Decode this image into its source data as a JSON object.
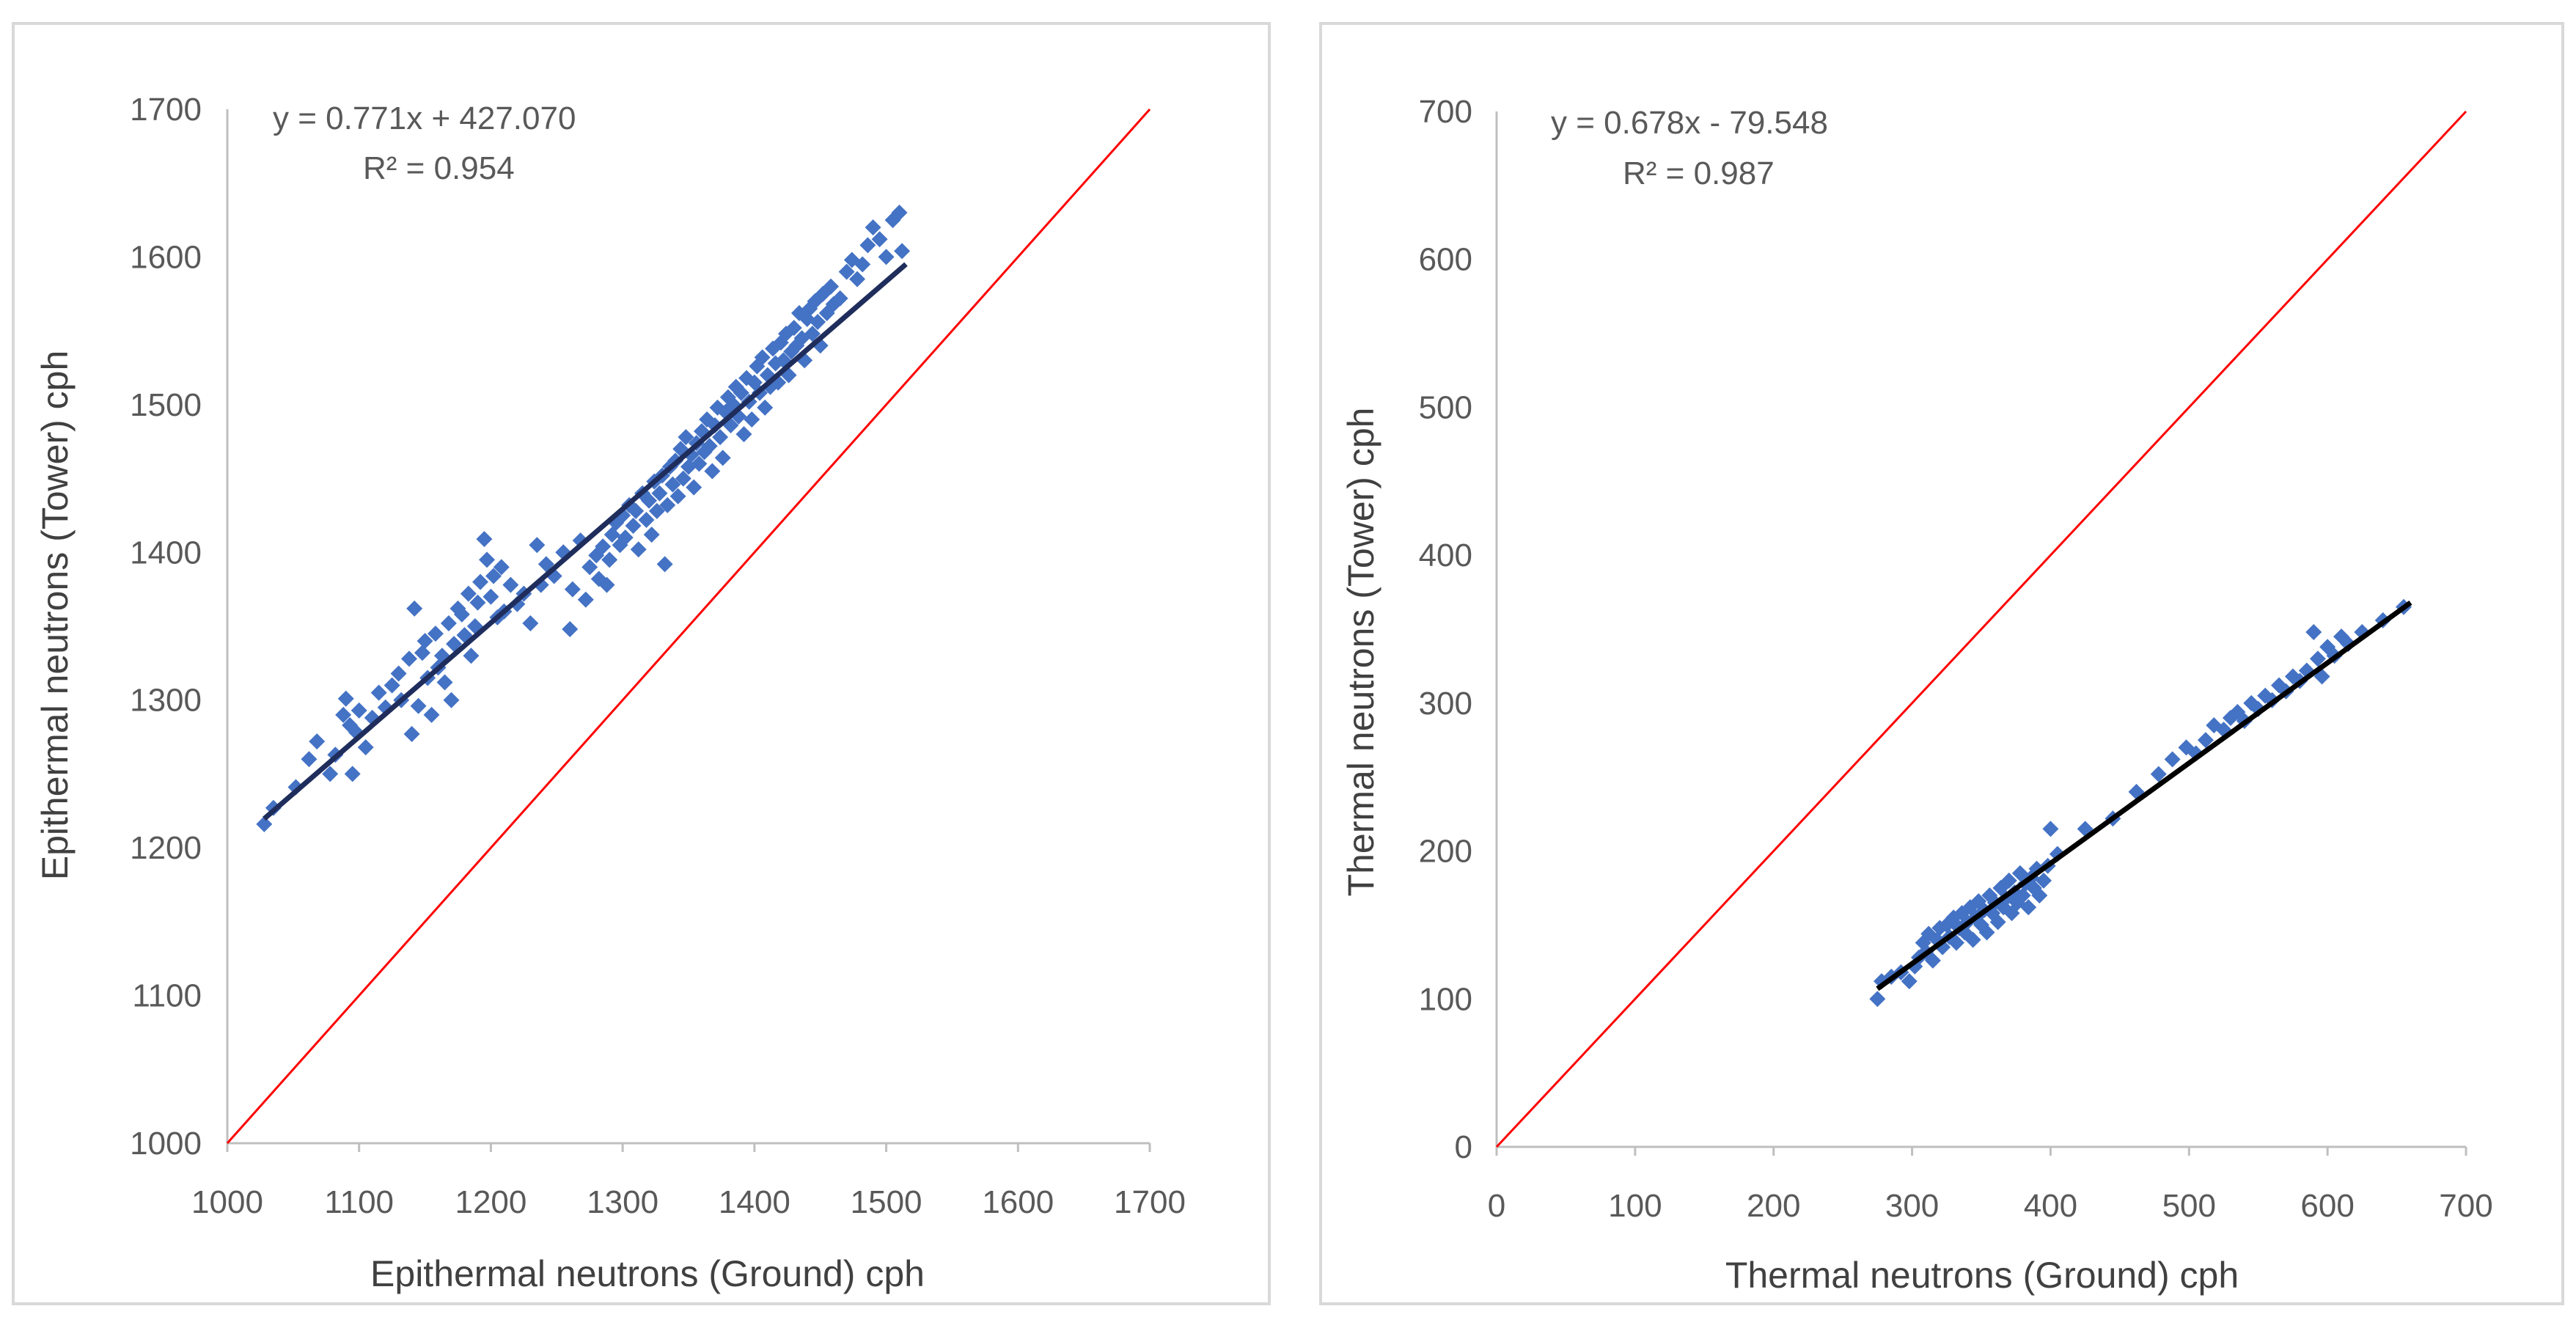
{
  "chart_data": [
    {
      "type": "scatter",
      "title": "",
      "xlabel": "Epithermal neutrons (Ground) cph",
      "ylabel": "Epithermal neutrons (Tower) cph",
      "xlim": [
        1000,
        1700
      ],
      "ylim": [
        1000,
        1700
      ],
      "xticks": [
        "1000",
        "1100",
        "1200",
        "1300",
        "1400",
        "1500",
        "1600",
        "1700"
      ],
      "yticks": [
        "1000",
        "1100",
        "1200",
        "1300",
        "1400",
        "1500",
        "1600",
        "1700"
      ],
      "trendline": {
        "slope": 0.771,
        "intercept": 427.07,
        "x_range": [
          1028,
          1515
        ],
        "color": "#1f2d5c"
      },
      "one_to_one_line": {
        "color": "#ff0000"
      },
      "equation": "y = 0.771x + 427.070",
      "r_squared": "R² = 0.954",
      "marker_color": "#4472c4",
      "series": [
        {
          "name": "Epithermal",
          "points": [
            [
              1028,
              1216
            ],
            [
              1035,
              1227
            ],
            [
              1052,
              1241
            ],
            [
              1062,
              1260
            ],
            [
              1068,
              1272
            ],
            [
              1078,
              1250
            ],
            [
              1082,
              1263
            ],
            [
              1088,
              1290
            ],
            [
              1090,
              1301
            ],
            [
              1093,
              1283
            ],
            [
              1095,
              1250
            ],
            [
              1098,
              1278
            ],
            [
              1100,
              1293
            ],
            [
              1105,
              1268
            ],
            [
              1110,
              1288
            ],
            [
              1115,
              1305
            ],
            [
              1120,
              1295
            ],
            [
              1125,
              1310
            ],
            [
              1130,
              1318
            ],
            [
              1132,
              1300
            ],
            [
              1138,
              1328
            ],
            [
              1140,
              1277
            ],
            [
              1142,
              1362
            ],
            [
              1145,
              1296
            ],
            [
              1148,
              1332
            ],
            [
              1150,
              1340
            ],
            [
              1152,
              1315
            ],
            [
              1155,
              1290
            ],
            [
              1158,
              1345
            ],
            [
              1160,
              1322
            ],
            [
              1163,
              1330
            ],
            [
              1165,
              1312
            ],
            [
              1168,
              1352
            ],
            [
              1170,
              1300
            ],
            [
              1172,
              1338
            ],
            [
              1175,
              1362
            ],
            [
              1178,
              1358
            ],
            [
              1180,
              1344
            ],
            [
              1183,
              1372
            ],
            [
              1185,
              1330
            ],
            [
              1188,
              1350
            ],
            [
              1190,
              1366
            ],
            [
              1192,
              1380
            ],
            [
              1195,
              1409
            ],
            [
              1197,
              1395
            ],
            [
              1200,
              1370
            ],
            [
              1202,
              1384
            ],
            [
              1205,
              1356
            ],
            [
              1208,
              1390
            ],
            [
              1210,
              1360
            ],
            [
              1215,
              1378
            ],
            [
              1220,
              1365
            ],
            [
              1225,
              1372
            ],
            [
              1230,
              1352
            ],
            [
              1235,
              1405
            ],
            [
              1238,
              1378
            ],
            [
              1242,
              1392
            ],
            [
              1248,
              1384
            ],
            [
              1255,
              1400
            ],
            [
              1260,
              1348
            ],
            [
              1262,
              1375
            ],
            [
              1268,
              1408
            ],
            [
              1272,
              1368
            ],
            [
              1275,
              1390
            ],
            [
              1280,
              1398
            ],
            [
              1282,
              1382
            ],
            [
              1285,
              1404
            ],
            [
              1288,
              1378
            ],
            [
              1290,
              1395
            ],
            [
              1292,
              1412
            ],
            [
              1295,
              1420
            ],
            [
              1298,
              1405
            ],
            [
              1300,
              1425
            ],
            [
              1302,
              1410
            ],
            [
              1305,
              1432
            ],
            [
              1308,
              1418
            ],
            [
              1310,
              1428
            ],
            [
              1312,
              1402
            ],
            [
              1315,
              1440
            ],
            [
              1318,
              1422
            ],
            [
              1320,
              1435
            ],
            [
              1322,
              1412
            ],
            [
              1324,
              1448
            ],
            [
              1326,
              1428
            ],
            [
              1328,
              1440
            ],
            [
              1330,
              1452
            ],
            [
              1332,
              1392
            ],
            [
              1334,
              1432
            ],
            [
              1336,
              1458
            ],
            [
              1338,
              1446
            ],
            [
              1340,
              1462
            ],
            [
              1342,
              1438
            ],
            [
              1344,
              1470
            ],
            [
              1346,
              1450
            ],
            [
              1348,
              1478
            ],
            [
              1350,
              1458
            ],
            [
              1352,
              1466
            ],
            [
              1354,
              1444
            ],
            [
              1356,
              1474
            ],
            [
              1358,
              1460
            ],
            [
              1360,
              1482
            ],
            [
              1362,
              1468
            ],
            [
              1364,
              1490
            ],
            [
              1366,
              1472
            ],
            [
              1368,
              1455
            ],
            [
              1370,
              1486
            ],
            [
              1372,
              1498
            ],
            [
              1374,
              1478
            ],
            [
              1376,
              1464
            ],
            [
              1378,
              1495
            ],
            [
              1380,
              1505
            ],
            [
              1382,
              1486
            ],
            [
              1384,
              1500
            ],
            [
              1386,
              1512
            ],
            [
              1388,
              1492
            ],
            [
              1390,
              1508
            ],
            [
              1392,
              1480
            ],
            [
              1394,
              1518
            ],
            [
              1396,
              1502
            ],
            [
              1398,
              1490
            ],
            [
              1400,
              1515
            ],
            [
              1402,
              1526
            ],
            [
              1404,
              1508
            ],
            [
              1406,
              1532
            ],
            [
              1408,
              1498
            ],
            [
              1410,
              1520
            ],
            [
              1412,
              1512
            ],
            [
              1414,
              1538
            ],
            [
              1416,
              1528
            ],
            [
              1418,
              1515
            ],
            [
              1420,
              1542
            ],
            [
              1422,
              1530
            ],
            [
              1424,
              1548
            ],
            [
              1426,
              1520
            ],
            [
              1428,
              1536
            ],
            [
              1430,
              1552
            ],
            [
              1432,
              1540
            ],
            [
              1434,
              1562
            ],
            [
              1436,
              1545
            ],
            [
              1438,
              1530
            ],
            [
              1440,
              1558
            ],
            [
              1442,
              1565
            ],
            [
              1444,
              1548
            ],
            [
              1446,
              1570
            ],
            [
              1448,
              1556
            ],
            [
              1450,
              1540
            ],
            [
              1452,
              1575
            ],
            [
              1455,
              1562
            ],
            [
              1458,
              1580
            ],
            [
              1460,
              1568
            ],
            [
              1465,
              1572
            ],
            [
              1470,
              1590
            ],
            [
              1474,
              1598
            ],
            [
              1478,
              1585
            ],
            [
              1482,
              1595
            ],
            [
              1486,
              1608
            ],
            [
              1490,
              1620
            ],
            [
              1495,
              1612
            ],
            [
              1500,
              1600
            ],
            [
              1505,
              1625
            ],
            [
              1510,
              1630
            ],
            [
              1512,
              1604
            ]
          ]
        }
      ]
    },
    {
      "type": "scatter",
      "title": "",
      "xlabel": "Thermal neutrons (Ground) cph",
      "ylabel": "Thermal neutrons (Tower) cph",
      "xlim": [
        0,
        700
      ],
      "ylim": [
        0,
        700
      ],
      "xticks": [
        "0",
        "100",
        "200",
        "300",
        "400",
        "500",
        "600",
        "700"
      ],
      "yticks": [
        "0",
        "100",
        "200",
        "300",
        "400",
        "500",
        "600",
        "700"
      ],
      "trendline": {
        "slope": 0.678,
        "intercept": -79.548,
        "x_range": [
          275,
          660
        ],
        "color": "#000000"
      },
      "one_to_one_line": {
        "color": "#ff0000"
      },
      "equation": "y = 0.678x - 79.548",
      "r_squared": "R² = 0.987",
      "marker_color": "#4472c4",
      "series": [
        {
          "name": "Thermal",
          "points": [
            [
              275,
              100
            ],
            [
              278,
              112
            ],
            [
              285,
              115
            ],
            [
              292,
              118
            ],
            [
              298,
              112
            ],
            [
              302,
              122
            ],
            [
              305,
              128
            ],
            [
              308,
              138
            ],
            [
              310,
              132
            ],
            [
              312,
              144
            ],
            [
              315,
              126
            ],
            [
              318,
              140
            ],
            [
              320,
              148
            ],
            [
              322,
              135
            ],
            [
              325,
              150
            ],
            [
              327,
              142
            ],
            [
              330,
              155
            ],
            [
              332,
              138
            ],
            [
              334,
              148
            ],
            [
              336,
              158
            ],
            [
              338,
              145
            ],
            [
              340,
              152
            ],
            [
              342,
              162
            ],
            [
              344,
              140
            ],
            [
              346,
              155
            ],
            [
              348,
              166
            ],
            [
              350,
              150
            ],
            [
              352,
              160
            ],
            [
              354,
              145
            ],
            [
              356,
              170
            ],
            [
              358,
              158
            ],
            [
              360,
              165
            ],
            [
              362,
              152
            ],
            [
              364,
              175
            ],
            [
              366,
              162
            ],
            [
              368,
              168
            ],
            [
              370,
              180
            ],
            [
              372,
              158
            ],
            [
              374,
              172
            ],
            [
              376,
              165
            ],
            [
              378,
              185
            ],
            [
              380,
              170
            ],
            [
              382,
              178
            ],
            [
              384,
              162
            ],
            [
              386,
              182
            ],
            [
              388,
              175
            ],
            [
              390,
              188
            ],
            [
              392,
              170
            ],
            [
              395,
              180
            ],
            [
              398,
              190
            ],
            [
              400,
              215
            ],
            [
              405,
              198
            ],
            [
              425,
              215
            ],
            [
              445,
              222
            ],
            [
              462,
              240
            ],
            [
              478,
              252
            ],
            [
              488,
              262
            ],
            [
              498,
              270
            ],
            [
              505,
              266
            ],
            [
              512,
              275
            ],
            [
              518,
              285
            ],
            [
              525,
              282
            ],
            [
              530,
              290
            ],
            [
              535,
              294
            ],
            [
              540,
              288
            ],
            [
              545,
              300
            ],
            [
              550,
              296
            ],
            [
              555,
              305
            ],
            [
              560,
              302
            ],
            [
              565,
              312
            ],
            [
              570,
              308
            ],
            [
              575,
              318
            ],
            [
              580,
              315
            ],
            [
              585,
              322
            ],
            [
              590,
              348
            ],
            [
              593,
              330
            ],
            [
              596,
              318
            ],
            [
              600,
              338
            ],
            [
              605,
              332
            ],
            [
              610,
              345
            ],
            [
              615,
              340
            ],
            [
              625,
              348
            ],
            [
              640,
              356
            ],
            [
              655,
              365
            ]
          ]
        }
      ]
    }
  ]
}
